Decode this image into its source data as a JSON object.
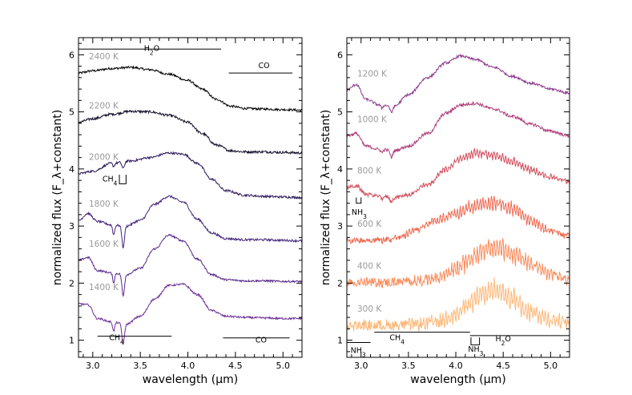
{
  "chart_data": [
    {
      "type": "line",
      "panel": "left",
      "xlabel": "wavelength (μm)",
      "ylabel": "normalized flux (F_λ+constant)",
      "xlim": [
        2.85,
        5.2
      ],
      "ylim": [
        0.7,
        6.3
      ],
      "xticks": [
        3.0,
        3.5,
        4.0,
        4.5,
        5.0
      ],
      "xtick_labels": [
        "3.0",
        "3.5",
        "4.0",
        "4.5",
        "5.0"
      ],
      "yticks": [
        1,
        2,
        3,
        4,
        5,
        6
      ],
      "ytick_labels": [
        "1",
        "2",
        "3",
        "4",
        "5",
        "6"
      ],
      "series": [
        {
          "name": "2400 K",
          "label": "2400 K",
          "color": "#000000",
          "label_color": "#9a9a9a",
          "noise": 0.035,
          "features": 0,
          "x": [
            2.85,
            3.0,
            3.2,
            3.4,
            3.6,
            3.8,
            4.0,
            4.15,
            4.3,
            4.45,
            4.6,
            4.8,
            5.0,
            5.2
          ],
          "y": [
            5.68,
            5.72,
            5.76,
            5.78,
            5.74,
            5.66,
            5.55,
            5.4,
            5.22,
            5.1,
            5.06,
            5.05,
            5.04,
            5.03
          ]
        },
        {
          "name": "2200 K",
          "label": "2200 K",
          "color": "#14102b",
          "label_color": "#9a9a9a",
          "noise": 0.04,
          "features": 0,
          "x": [
            2.85,
            3.0,
            3.2,
            3.4,
            3.6,
            3.8,
            4.0,
            4.15,
            4.3,
            4.45,
            4.6,
            4.8,
            5.0,
            5.2
          ],
          "y": [
            4.82,
            4.88,
            4.96,
            5.01,
            5.0,
            4.94,
            4.82,
            4.62,
            4.42,
            4.32,
            4.3,
            4.3,
            4.29,
            4.28
          ]
        },
        {
          "name": "2000 K",
          "label": "2000 K",
          "color": "#2d1a5c",
          "label_color": "#9a9a9a",
          "noise": 0.035,
          "features": 0.12,
          "x": [
            2.85,
            3.0,
            3.2,
            3.4,
            3.6,
            3.8,
            3.95,
            4.1,
            4.25,
            4.4,
            4.6,
            4.8,
            5.0,
            5.2
          ],
          "y": [
            3.92,
            3.96,
            4.1,
            4.14,
            4.2,
            4.28,
            4.26,
            4.1,
            3.82,
            3.62,
            3.54,
            3.52,
            3.51,
            3.5
          ]
        },
        {
          "name": "1800 K",
          "label": "1800 K",
          "color": "#44257a",
          "label_color": "#9a9a9a",
          "noise": 0.035,
          "features": 0.38,
          "x": [
            2.85,
            2.95,
            3.05,
            3.2,
            3.35,
            3.5,
            3.65,
            3.8,
            3.95,
            4.1,
            4.25,
            4.4,
            4.6,
            4.8,
            5.0,
            5.2
          ],
          "y": [
            3.1,
            3.22,
            3.08,
            3.02,
            3.0,
            3.1,
            3.38,
            3.52,
            3.42,
            3.12,
            2.88,
            2.78,
            2.76,
            2.76,
            2.75,
            2.74
          ]
        },
        {
          "name": "1600 K",
          "label": "1600 K",
          "color": "#57288a",
          "label_color": "#9a9a9a",
          "noise": 0.03,
          "features": 0.38,
          "x": [
            2.85,
            2.95,
            3.05,
            3.2,
            3.35,
            3.5,
            3.65,
            3.8,
            3.95,
            4.1,
            4.25,
            4.4,
            4.6,
            4.8,
            5.0,
            5.2
          ],
          "y": [
            2.4,
            2.45,
            2.22,
            2.18,
            2.15,
            2.26,
            2.6,
            2.84,
            2.74,
            2.42,
            2.15,
            2.06,
            2.04,
            2.04,
            2.03,
            2.03
          ]
        },
        {
          "name": "1400 K",
          "label": "1400 K",
          "color": "#6e3096",
          "label_color": "#9a9a9a",
          "noise": 0.03,
          "features": 0.36,
          "x": [
            2.85,
            2.95,
            3.05,
            3.2,
            3.35,
            3.5,
            3.65,
            3.8,
            3.95,
            4.1,
            4.25,
            4.4,
            4.6,
            4.8,
            5.0,
            5.2
          ],
          "y": [
            1.64,
            1.62,
            1.38,
            1.32,
            1.28,
            1.42,
            1.72,
            1.96,
            1.98,
            1.8,
            1.52,
            1.42,
            1.4,
            1.39,
            1.38,
            1.38
          ]
        }
      ],
      "annotations": [
        {
          "text": "H₂O",
          "x": 3.62,
          "y": 6.07,
          "bar_from": 2.85,
          "bar_to": 4.35,
          "bar_y": 6.1
        },
        {
          "text": "CO",
          "x": 4.8,
          "y": 5.77,
          "bar_from": 4.43,
          "bar_to": 5.1,
          "bar_y": 5.68
        },
        {
          "text": "CH₄",
          "x": 3.25,
          "y": 1.0,
          "bar_from": 3.05,
          "bar_to": 3.83,
          "bar_y": 1.07
        },
        {
          "text": "CO",
          "x": 4.77,
          "y": 0.96,
          "bar_from": 4.37,
          "bar_to": 5.07,
          "bar_y": 1.04
        },
        {
          "text": "CH₄",
          "x": 3.18,
          "y": 3.78,
          "bracket_from": 3.28,
          "bracket_to": 3.35,
          "bracket_y": 3.9,
          "bracket_drop": 0.16
        }
      ]
    },
    {
      "type": "line",
      "panel": "right",
      "xlabel": "wavelength (μm)",
      "ylabel": "normalized flux (F_λ+constant)",
      "xlim": [
        2.85,
        5.2
      ],
      "ylim": [
        0.7,
        6.3
      ],
      "xticks": [
        3.0,
        3.5,
        4.0,
        4.5,
        5.0
      ],
      "xtick_labels": [
        "3.0",
        "3.5",
        "4.0",
        "4.5",
        "5.0"
      ],
      "yticks": [
        1,
        2,
        3,
        4,
        5,
        6
      ],
      "ytick_labels": [
        "1",
        "2",
        "3",
        "4",
        "5",
        "6"
      ],
      "series": [
        {
          "name": "1200 K",
          "label": "1200 K",
          "color": "#8e3a8e",
          "label_color": "#9a9a9a",
          "noise": 0.04,
          "features": 0.12,
          "x": [
            2.85,
            2.95,
            3.05,
            3.2,
            3.35,
            3.5,
            3.7,
            3.9,
            4.05,
            4.2,
            4.4,
            4.6,
            4.8,
            5.0,
            5.2
          ],
          "y": [
            5.38,
            5.48,
            5.22,
            5.12,
            5.1,
            5.3,
            5.6,
            5.86,
            5.98,
            5.92,
            5.78,
            5.62,
            5.5,
            5.4,
            5.33
          ]
        },
        {
          "name": "1000 K",
          "label": "1000 K",
          "color": "#b03f7a",
          "label_color": "#9a9a9a",
          "noise": 0.05,
          "features": 0.12,
          "x": [
            2.85,
            2.95,
            3.05,
            3.2,
            3.35,
            3.5,
            3.7,
            3.9,
            4.05,
            4.2,
            4.4,
            4.6,
            4.8,
            5.0,
            5.2
          ],
          "y": [
            4.58,
            4.62,
            4.4,
            4.34,
            4.32,
            4.4,
            4.62,
            4.98,
            5.12,
            5.15,
            5.05,
            4.92,
            4.78,
            4.66,
            4.58
          ]
        },
        {
          "name": "800 K",
          "label": "800 K",
          "color": "#d1505f",
          "label_color": "#9a9a9a",
          "noise": 0.06,
          "features": 0.08,
          "x": [
            2.85,
            2.95,
            3.05,
            3.2,
            3.35,
            3.5,
            3.7,
            3.9,
            4.05,
            4.2,
            4.4,
            4.6,
            4.8,
            5.0,
            5.2
          ],
          "y": [
            3.68,
            3.7,
            3.56,
            3.52,
            3.5,
            3.55,
            3.72,
            4.0,
            4.18,
            4.28,
            4.25,
            4.12,
            3.98,
            3.86,
            3.78
          ]
        },
        {
          "name": "600 K",
          "label": "600 K",
          "color": "#ef6a52",
          "label_color": "#9a9a9a",
          "noise": 0.09,
          "features": 0.03,
          "x": [
            2.85,
            3.0,
            3.2,
            3.4,
            3.6,
            3.8,
            4.0,
            4.15,
            4.3,
            4.45,
            4.6,
            4.8,
            5.0,
            5.2
          ],
          "y": [
            2.75,
            2.75,
            2.76,
            2.8,
            2.95,
            3.1,
            3.22,
            3.32,
            3.38,
            3.4,
            3.3,
            3.08,
            2.92,
            2.82
          ]
        },
        {
          "name": "400 K",
          "label": "400 K",
          "color": "#fb8c5c",
          "label_color": "#9a9a9a",
          "noise": 0.14,
          "features": 0,
          "x": [
            2.85,
            3.0,
            3.2,
            3.4,
            3.6,
            3.8,
            4.0,
            4.15,
            4.3,
            4.45,
            4.6,
            4.8,
            5.0,
            5.2
          ],
          "y": [
            2.01,
            2.01,
            2.01,
            2.02,
            2.04,
            2.1,
            2.24,
            2.42,
            2.58,
            2.62,
            2.52,
            2.32,
            2.16,
            2.06
          ]
        },
        {
          "name": "300 K",
          "label": "300 K",
          "color": "#fdb97a",
          "label_color": "#9a9a9a",
          "noise": 0.16,
          "features": 0,
          "x": [
            2.85,
            3.0,
            3.2,
            3.4,
            3.6,
            3.8,
            4.0,
            4.15,
            4.3,
            4.45,
            4.6,
            4.8,
            5.0,
            5.2
          ],
          "y": [
            1.26,
            1.26,
            1.26,
            1.27,
            1.28,
            1.32,
            1.45,
            1.65,
            1.82,
            1.86,
            1.72,
            1.5,
            1.36,
            1.3
          ]
        }
      ],
      "annotations": [
        {
          "text": "CH₄",
          "x": 3.38,
          "y": 1.0,
          "bar_from": 3.14,
          "bar_to": 4.15,
          "bar_y": 1.14
        },
        {
          "text": "H₂O",
          "x": 4.5,
          "y": 0.98,
          "bar_from": 4.15,
          "bar_to": 5.2,
          "bar_y": 1.08
        },
        {
          "text": "NH₃",
          "x": 2.97,
          "y": 0.78,
          "bar_from": 2.85,
          "bar_to": 3.1,
          "bar_y": 0.96
        },
        {
          "text": "NH₃",
          "x": 4.21,
          "y": 0.8,
          "bracket_from": 4.16,
          "bracket_to": 4.25,
          "bracket_y": 1.05,
          "bracket_drop": 0.13
        },
        {
          "text": "NH₃",
          "x": 2.98,
          "y": 3.2,
          "bracket_from": 2.95,
          "bracket_to": 3.0,
          "bracket_y": 3.5,
          "bracket_drop": 0.1
        }
      ]
    }
  ]
}
